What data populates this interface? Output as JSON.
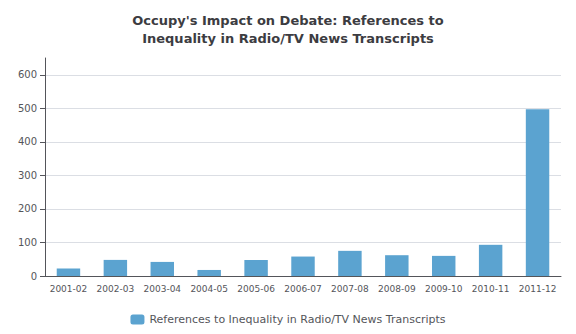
{
  "chart_data": {
    "type": "bar",
    "title": "Occupy's Impact on Debate: References to\nInequality in Radio/TV News Transcripts",
    "categories": [
      "2001-02",
      "2002-03",
      "2003-04",
      "2004-05",
      "2005-06",
      "2006-07",
      "2007-08",
      "2008-09",
      "2009-10",
      "2010-11",
      "2011-12"
    ],
    "series": [
      {
        "name": "References to Inequality in Radio/TV News Transcripts",
        "color": "#5BA3D0",
        "values": [
          22,
          48,
          42,
          18,
          48,
          58,
          75,
          62,
          60,
          93,
          497
        ]
      }
    ],
    "ylim": [
      0,
      650
    ],
    "yticks": [
      0,
      100,
      200,
      300,
      400,
      500,
      600
    ],
    "grid": true,
    "legend": "bottom"
  }
}
